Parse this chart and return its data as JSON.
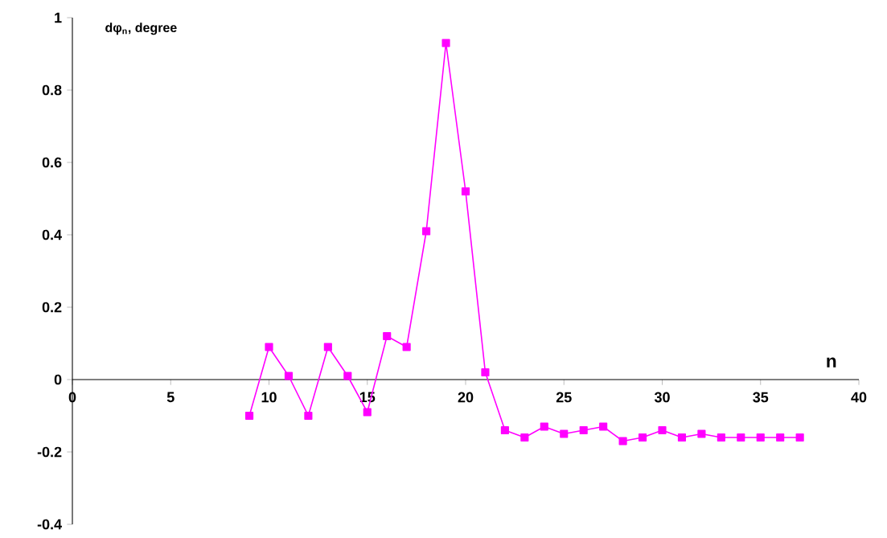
{
  "chart_data": {
    "type": "line",
    "xlabel": "n",
    "ylabel": "dφ$_{n}$, degree",
    "x": [
      9,
      10,
      11,
      12,
      13,
      14,
      15,
      16,
      17,
      18,
      19,
      20,
      21,
      22,
      23,
      24,
      25,
      26,
      27,
      28,
      29,
      30,
      31,
      32,
      33,
      34,
      35,
      36,
      37
    ],
    "series": [
      {
        "color": "#ff00ff",
        "values": [
          -0.1,
          0.09,
          0.01,
          -0.1,
          0.09,
          0.01,
          -0.09,
          0.12,
          0.09,
          0.41,
          0.93,
          0.52,
          0.02,
          -0.14,
          -0.16,
          -0.13,
          -0.15,
          -0.14,
          -0.13,
          -0.17,
          -0.16,
          -0.14,
          -0.16,
          -0.15,
          -0.16,
          -0.16,
          -0.16,
          -0.16,
          -0.16
        ]
      }
    ],
    "xlim": [
      0,
      40
    ],
    "xticks": [
      0,
      5,
      10,
      15,
      20,
      25,
      30,
      35,
      40
    ],
    "ylim": [
      -0.4,
      1
    ],
    "yticks": [
      -0.4,
      -0.2,
      0,
      0.2,
      0.4,
      0.6,
      0.8,
      1
    ],
    "marker": "square",
    "line_style": "solid",
    "grid": false
  }
}
